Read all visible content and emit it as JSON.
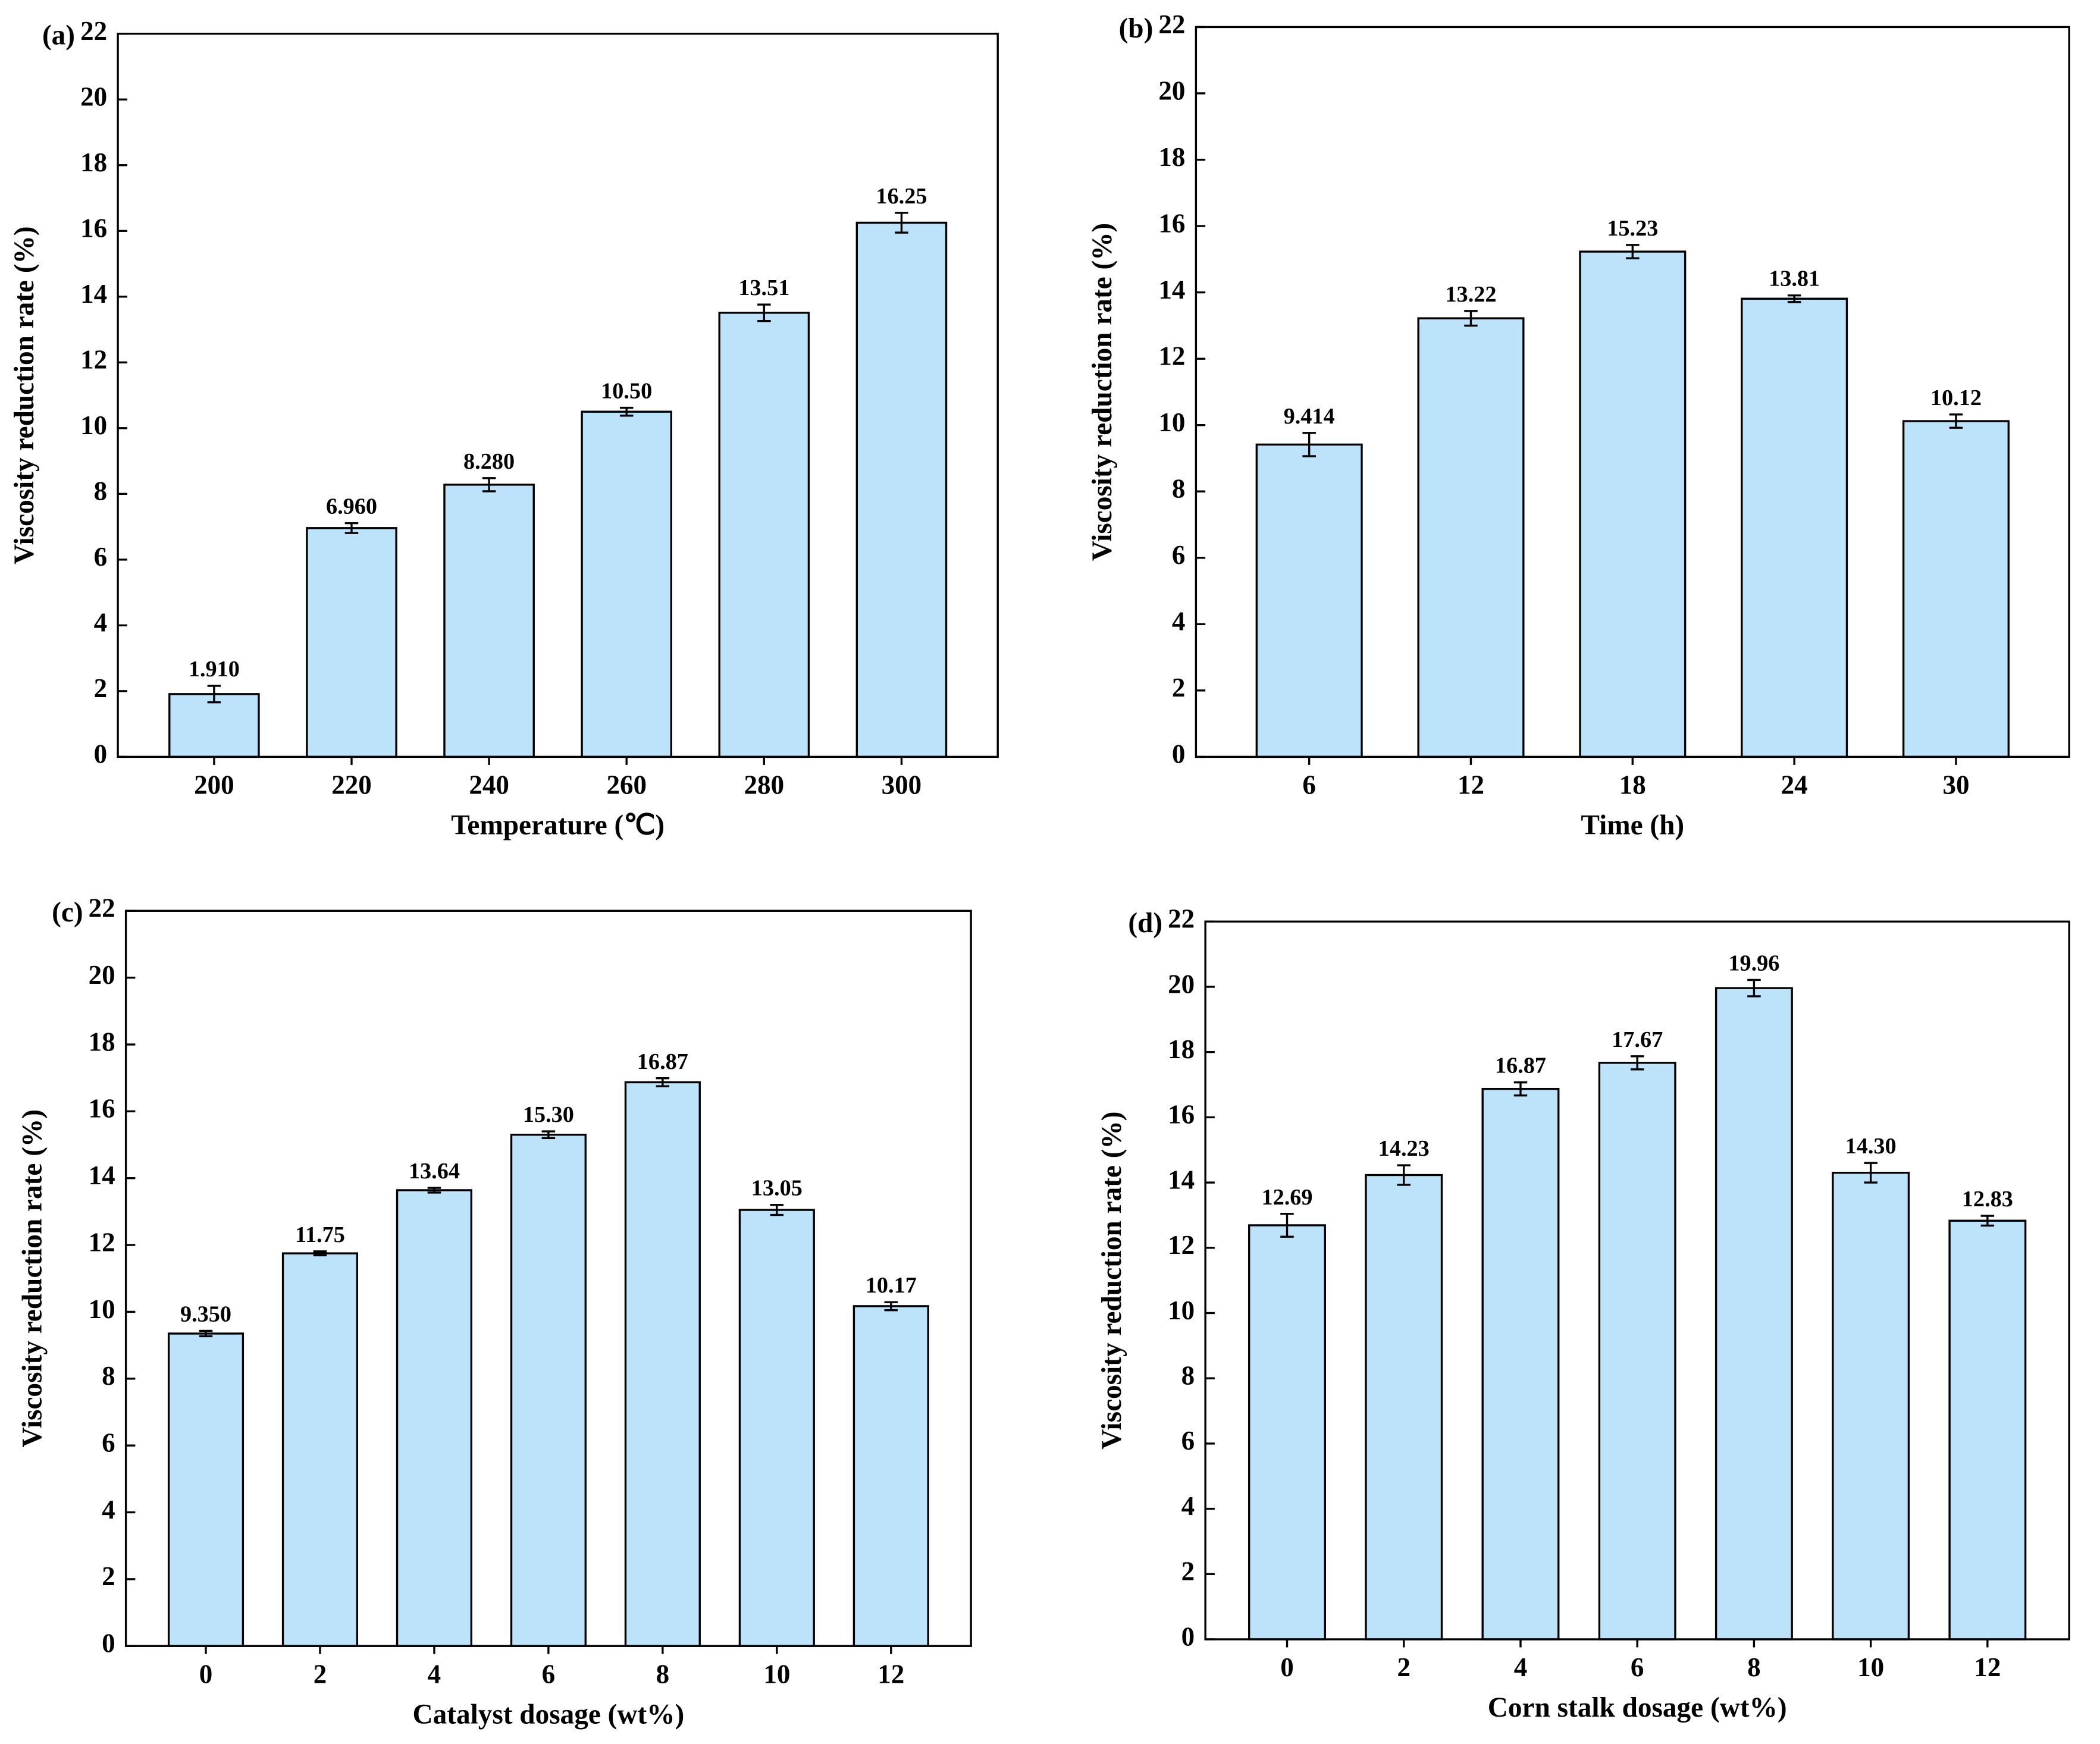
{
  "chart_data": [
    {
      "type": "bar",
      "label": "(a)",
      "xlabel": "Temperature (℃)",
      "ylabel": "Viscosity reduction rate (%)",
      "categories": [
        "200",
        "220",
        "240",
        "260",
        "280",
        "300"
      ],
      "values": [
        1.91,
        6.96,
        8.28,
        10.5,
        13.51,
        16.25
      ],
      "errors": [
        0.25,
        0.15,
        0.2,
        0.12,
        0.25,
        0.3
      ],
      "value_labels": [
        "1.910",
        "6.960",
        "8.280",
        "10.50",
        "13.51",
        "16.25"
      ],
      "color": "#bde3fb",
      "ylim": [
        0,
        22
      ],
      "yticks": [
        0,
        2,
        4,
        6,
        8,
        10,
        12,
        14,
        16,
        18,
        20,
        22
      ]
    },
    {
      "type": "bar",
      "label": "(b)",
      "xlabel": "Time (h)",
      "ylabel": "Viscosity reduction rate (%)",
      "categories": [
        "6",
        "12",
        "18",
        "24",
        "30"
      ],
      "values": [
        9.414,
        13.22,
        15.23,
        13.81,
        10.12
      ],
      "errors": [
        0.35,
        0.22,
        0.2,
        0.1,
        0.2
      ],
      "value_labels": [
        "9.414",
        "13.22",
        "15.23",
        "13.81",
        "10.12"
      ],
      "color": "#bde3fb",
      "ylim": [
        0,
        22
      ],
      "yticks": [
        0,
        2,
        4,
        6,
        8,
        10,
        12,
        14,
        16,
        18,
        20,
        22
      ]
    },
    {
      "type": "bar",
      "label": "(c)",
      "xlabel": "Catalyst dosage (wt%)",
      "ylabel": "Viscosity reduction rate (%)",
      "categories": [
        "0",
        "2",
        "4",
        "6",
        "8",
        "10",
        "12"
      ],
      "values": [
        9.35,
        11.75,
        13.64,
        15.3,
        16.87,
        13.05,
        10.17
      ],
      "errors": [
        0.08,
        0.06,
        0.07,
        0.1,
        0.12,
        0.15,
        0.12
      ],
      "value_labels": [
        "9.350",
        "11.75",
        "13.64",
        "15.30",
        "16.87",
        "13.05",
        "10.17"
      ],
      "color": "#bde3fb",
      "ylim": [
        0,
        22
      ],
      "yticks": [
        0,
        2,
        4,
        6,
        8,
        10,
        12,
        14,
        16,
        18,
        20,
        22
      ]
    },
    {
      "type": "bar",
      "label": "(d)",
      "xlabel": "Corn stalk dosage (wt%)",
      "ylabel": "Viscosity reduction rate (%)",
      "categories": [
        "0",
        "2",
        "4",
        "6",
        "8",
        "10",
        "12"
      ],
      "values": [
        12.69,
        14.23,
        16.87,
        17.67,
        19.96,
        14.3,
        12.83
      ],
      "errors": [
        0.35,
        0.3,
        0.2,
        0.2,
        0.25,
        0.3,
        0.15
      ],
      "value_labels": [
        "12.69",
        "14.23",
        "16.87",
        "17.67",
        "19.96",
        "14.30",
        "12.83"
      ],
      "color": "#bde3fb",
      "ylim": [
        0,
        22
      ],
      "yticks": [
        0,
        2,
        4,
        6,
        8,
        10,
        12,
        14,
        16,
        18,
        20,
        22
      ]
    }
  ]
}
